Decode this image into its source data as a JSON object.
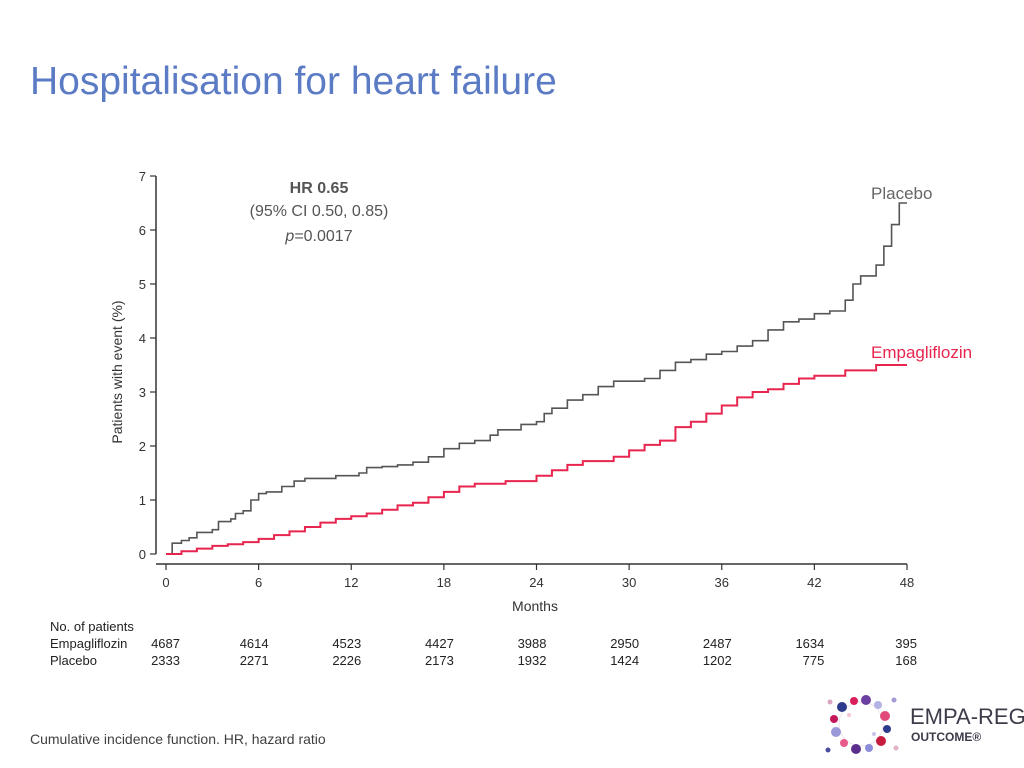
{
  "slide": {
    "title": "Hospitalisation for heart failure",
    "footnote": "Cumulative incidence function. HR, hazard ratio"
  },
  "logo": {
    "line1": "EMPA-REG",
    "line2": "OUTCOME®"
  },
  "chart_data": {
    "type": "line",
    "title": "",
    "xlabel": "Months",
    "ylabel": "Patients with event (%)",
    "xlim": [
      0,
      48
    ],
    "ylim": [
      0,
      7
    ],
    "xticks": [
      0,
      6,
      12,
      18,
      24,
      30,
      36,
      42,
      48
    ],
    "yticks": [
      0,
      1,
      2,
      3,
      4,
      5,
      6,
      7
    ],
    "grid": false,
    "annotation": {
      "hr": "HR 0.65",
      "ci": "(95% CI 0.50, 0.85)",
      "p_symbol": "p",
      "p_value": "=0.0017"
    },
    "series": [
      {
        "name": "Placebo",
        "color": "#555555",
        "points": [
          [
            0,
            0
          ],
          [
            0.4,
            0.2
          ],
          [
            1,
            0.25
          ],
          [
            1.5,
            0.3
          ],
          [
            2,
            0.4
          ],
          [
            3,
            0.45
          ],
          [
            3.4,
            0.6
          ],
          [
            4.2,
            0.65
          ],
          [
            4.5,
            0.75
          ],
          [
            5,
            0.8
          ],
          [
            5.5,
            1.0
          ],
          [
            6,
            1.12
          ],
          [
            6.5,
            1.15
          ],
          [
            7.5,
            1.25
          ],
          [
            8.3,
            1.35
          ],
          [
            9,
            1.4
          ],
          [
            11,
            1.45
          ],
          [
            12.5,
            1.5
          ],
          [
            13,
            1.6
          ],
          [
            14,
            1.62
          ],
          [
            15,
            1.65
          ],
          [
            16,
            1.7
          ],
          [
            17,
            1.8
          ],
          [
            18,
            1.95
          ],
          [
            19,
            2.05
          ],
          [
            20,
            2.1
          ],
          [
            21,
            2.2
          ],
          [
            21.5,
            2.3
          ],
          [
            23,
            2.4
          ],
          [
            24,
            2.45
          ],
          [
            24.5,
            2.6
          ],
          [
            25,
            2.7
          ],
          [
            26,
            2.85
          ],
          [
            27,
            2.95
          ],
          [
            28,
            3.1
          ],
          [
            29,
            3.2
          ],
          [
            31,
            3.25
          ],
          [
            32,
            3.4
          ],
          [
            33,
            3.55
          ],
          [
            34,
            3.6
          ],
          [
            35,
            3.7
          ],
          [
            36,
            3.75
          ],
          [
            37,
            3.85
          ],
          [
            38,
            3.95
          ],
          [
            39,
            4.15
          ],
          [
            40,
            4.3
          ],
          [
            41,
            4.35
          ],
          [
            42,
            4.45
          ],
          [
            43,
            4.5
          ],
          [
            44,
            4.7
          ],
          [
            44.5,
            5.0
          ],
          [
            45,
            5.15
          ],
          [
            46,
            5.35
          ],
          [
            46.5,
            5.7
          ],
          [
            47,
            6.1
          ],
          [
            47.5,
            6.5
          ],
          [
            48,
            6.5
          ]
        ]
      },
      {
        "name": "Empagliflozin",
        "color": "#e8254e",
        "points": [
          [
            0,
            0
          ],
          [
            1,
            0.05
          ],
          [
            2,
            0.1
          ],
          [
            3,
            0.15
          ],
          [
            4,
            0.18
          ],
          [
            5,
            0.22
          ],
          [
            6,
            0.28
          ],
          [
            7,
            0.35
          ],
          [
            8,
            0.42
          ],
          [
            9,
            0.5
          ],
          [
            10,
            0.58
          ],
          [
            11,
            0.65
          ],
          [
            12,
            0.7
          ],
          [
            13,
            0.75
          ],
          [
            14,
            0.82
          ],
          [
            15,
            0.9
          ],
          [
            16,
            0.95
          ],
          [
            17,
            1.05
          ],
          [
            18,
            1.15
          ],
          [
            19,
            1.25
          ],
          [
            20,
            1.3
          ],
          [
            22,
            1.35
          ],
          [
            24,
            1.45
          ],
          [
            25,
            1.55
          ],
          [
            26,
            1.65
          ],
          [
            27,
            1.72
          ],
          [
            29,
            1.8
          ],
          [
            30,
            1.92
          ],
          [
            31,
            2.02
          ],
          [
            32,
            2.1
          ],
          [
            33,
            2.35
          ],
          [
            34,
            2.45
          ],
          [
            35,
            2.6
          ],
          [
            36,
            2.75
          ],
          [
            37,
            2.9
          ],
          [
            38,
            3.0
          ],
          [
            39,
            3.05
          ],
          [
            40,
            3.15
          ],
          [
            41,
            3.25
          ],
          [
            42,
            3.3
          ],
          [
            44,
            3.4
          ],
          [
            46,
            3.5
          ],
          [
            48,
            3.5
          ]
        ]
      }
    ],
    "risk_table": {
      "header": "No. of patients",
      "months": [
        0,
        6,
        12,
        18,
        24,
        30,
        36,
        42,
        48
      ],
      "rows": [
        {
          "label": "Empagliflozin",
          "values": [
            "4687",
            "4614",
            "4523",
            "4427",
            "3988",
            "2950",
            "2487",
            "1634",
            "395"
          ]
        },
        {
          "label": "Placebo",
          "values": [
            "2333",
            "2271",
            "2226",
            "2173",
            "1932",
            "1424",
            "1202",
            "775",
            "168"
          ]
        }
      ]
    }
  },
  "colors": {
    "title": "#5b7bc4",
    "placebo": "#555555",
    "empagliflozin": "#e8254e",
    "axis": "#333333"
  }
}
